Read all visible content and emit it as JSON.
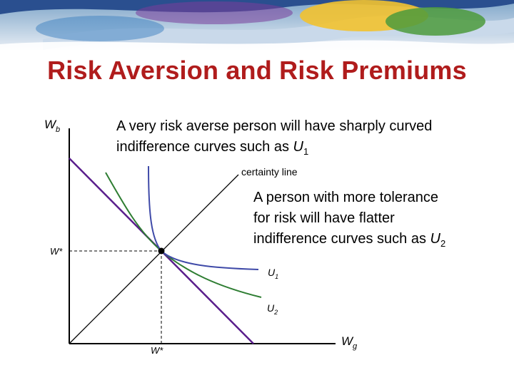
{
  "slide": {
    "title": "Risk Aversion and Risk Premiums"
  },
  "diagram": {
    "y_axis_label": "W",
    "y_axis_sub": "b",
    "x_axis_label": "W",
    "x_axis_sub": "g",
    "wstar_y_label": "W*",
    "wstar_x_label": "W*",
    "certainty_line_label": "certainty line",
    "u1_label": "U",
    "u1_sub": "1",
    "u2_label": "U",
    "u2_sub": "2",
    "note_averse": {
      "line1": "A very risk averse person will have sharply curved",
      "line2_text": "indifference curves such as ",
      "line2_symbol": "U",
      "line2_sub": "1"
    },
    "note_tolerant": {
      "line1": "A person with more tolerance",
      "line2": "for risk will have flatter",
      "line3_text": "indifference curves such as ",
      "line3_symbol": "U",
      "line3_sub": "2"
    },
    "colors": {
      "axis": "#000000",
      "budget_line": "#5a1e8c",
      "u1_curve": "#3f4aa8",
      "u2_curve": "#2e7d32",
      "title": "#b01c1c"
    }
  }
}
